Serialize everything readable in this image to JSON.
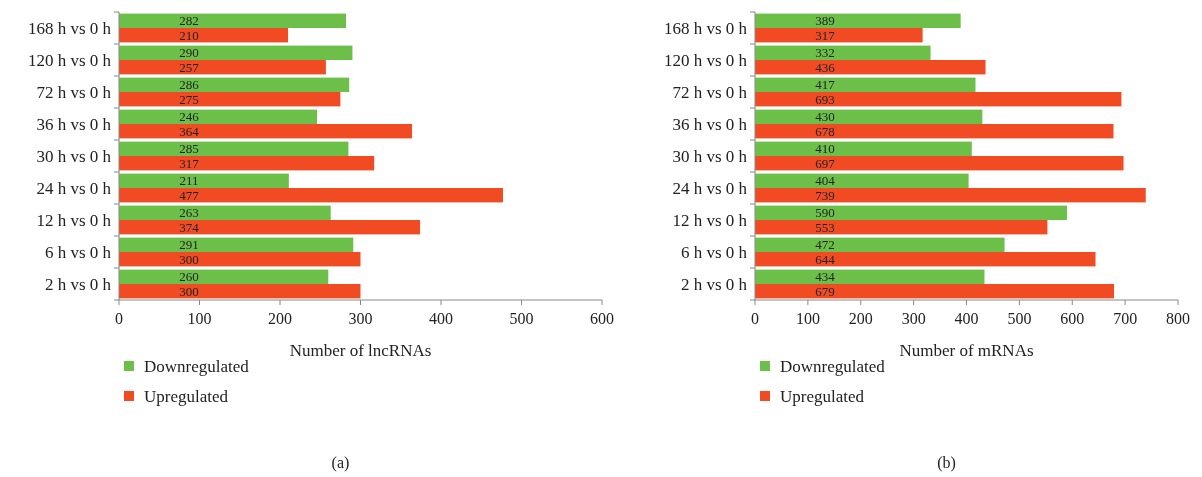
{
  "chart_data": [
    {
      "type": "bar",
      "orientation": "horizontal",
      "categories": [
        "168 h vs 0 h",
        "120 h vs 0 h",
        "72 h vs 0 h",
        "36 h vs 0 h",
        "30 h vs 0 h",
        "24 h vs 0 h",
        "12 h vs 0 h",
        "6 h vs 0 h",
        "2 h vs 0 h"
      ],
      "series": [
        {
          "name": "Downregulated",
          "color": "#6cc04a",
          "values": [
            282,
            290,
            286,
            246,
            285,
            211,
            263,
            291,
            260
          ]
        },
        {
          "name": "Upregulated",
          "color": "#f04b23",
          "values": [
            210,
            257,
            275,
            364,
            317,
            477,
            374,
            300,
            300
          ]
        }
      ],
      "xlim": [
        0,
        600
      ],
      "xticks": [
        0,
        100,
        200,
        300,
        400,
        500,
        600
      ],
      "xlabel": "Number of lncRNAs",
      "data_labels": true,
      "grid": false,
      "legend": "bottom left",
      "annotations": [
        "(a)"
      ]
    },
    {
      "type": "bar",
      "orientation": "horizontal",
      "categories": [
        "168 h vs 0 h",
        "120 h vs 0 h",
        "72 h vs 0 h",
        "36 h vs 0 h",
        "30 h vs 0 h",
        "24 h vs 0 h",
        "12 h vs 0 h",
        "6 h vs 0 h",
        "2 h vs 0 h"
      ],
      "series": [
        {
          "name": "Downregulated",
          "color": "#6cc04a",
          "values": [
            389,
            332,
            417,
            430,
            410,
            404,
            590,
            472,
            434
          ]
        },
        {
          "name": "Upregulated",
          "color": "#f04b23",
          "values": [
            317,
            436,
            693,
            678,
            697,
            739,
            553,
            644,
            679
          ]
        }
      ],
      "xlim": [
        0,
        800
      ],
      "xticks": [
        0,
        100,
        200,
        300,
        400,
        500,
        600,
        700,
        800
      ],
      "xlabel": "Number of mRNAs",
      "data_labels": true,
      "grid": false,
      "legend": "bottom left",
      "annotations": [
        "(b)"
      ]
    }
  ]
}
